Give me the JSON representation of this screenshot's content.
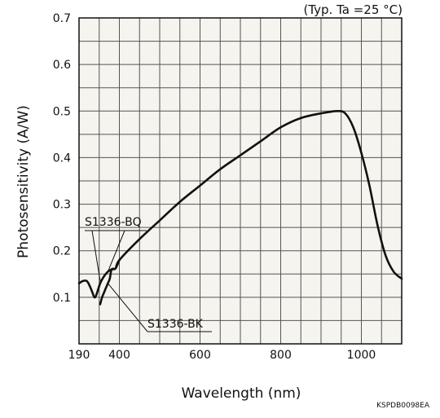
{
  "chart_data": {
    "type": "line",
    "xlabel": "Wavelength (nm)",
    "ylabel": "Photosensitivity (A/W)",
    "condition": "(Typ. Ta =25 °C)",
    "doc_code": "KSPDB0098EA",
    "xlim": [
      190,
      1100
    ],
    "ylim": [
      0,
      0.7
    ],
    "xticks": [
      190,
      400,
      600,
      800,
      1000
    ],
    "yticks": [
      0.1,
      0.2,
      0.3,
      0.4,
      0.5,
      0.6,
      0.7
    ],
    "grid": true,
    "series": [
      {
        "name": "S1336-BQ",
        "x": [
          190,
          210,
          230,
          245,
          260,
          270,
          280,
          300,
          320,
          340,
          360,
          380,
          400,
          450,
          500,
          550,
          600,
          650,
          700,
          750,
          800,
          850,
          900,
          940,
          960,
          980,
          1000,
          1020,
          1040,
          1060,
          1080,
          1100
        ],
        "y": [
          0.13,
          0.135,
          0.135,
          0.125,
          0.11,
          0.1,
          0.105,
          0.13,
          0.145,
          0.155,
          0.16,
          0.162,
          0.18,
          0.225,
          0.265,
          0.305,
          0.34,
          0.375,
          0.405,
          0.435,
          0.465,
          0.485,
          0.495,
          0.5,
          0.495,
          0.465,
          0.41,
          0.34,
          0.255,
          0.19,
          0.155,
          0.14
        ]
      },
      {
        "name": "S1336-BK",
        "x": [
          300,
          310,
          320,
          330,
          340,
          350,
          360,
          380,
          400
        ],
        "y": [
          0.085,
          0.1,
          0.11,
          0.12,
          0.13,
          0.14,
          0.16,
          0.162,
          0.18
        ]
      }
    ]
  }
}
